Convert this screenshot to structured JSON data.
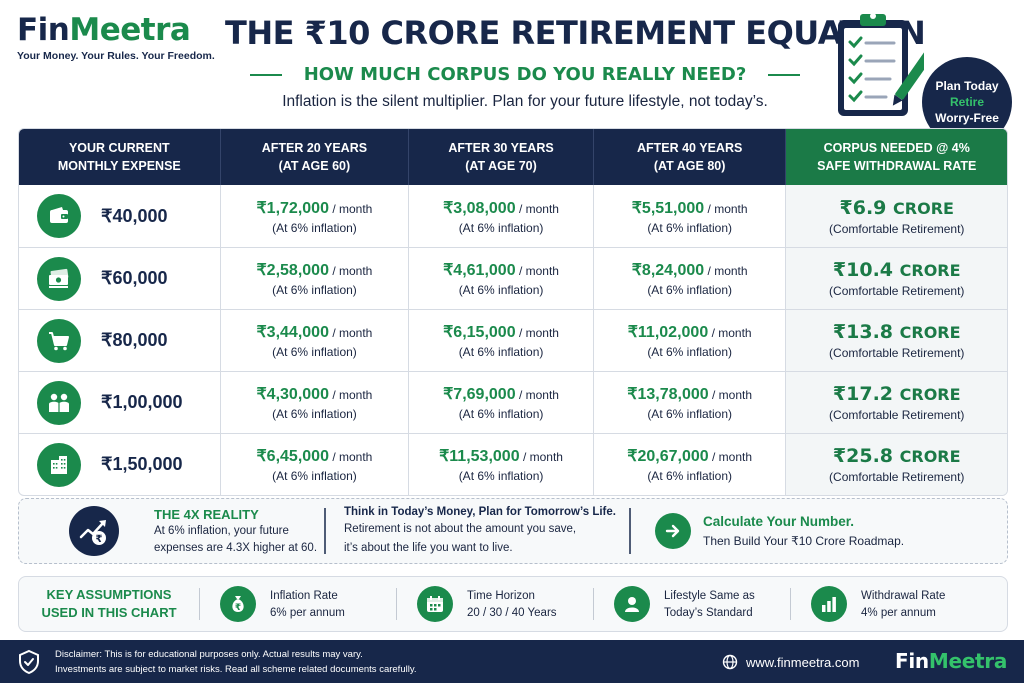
{
  "brand": {
    "name_part1": "Fin",
    "name_part2": "Meetra",
    "tagline": "Your Money. Your Rules. Your Freedom."
  },
  "header": {
    "title": "THE ₹10 CRORE RETIREMENT EQUATION",
    "subtitle": "HOW MUCH CORPUS DO YOU REALLY NEED?",
    "intro": "Inflation is the silent multiplier. Plan for your future lifestyle, not today’s."
  },
  "badge": {
    "line1": "Plan Today",
    "line2": "Retire",
    "line3": "Worry-Free"
  },
  "table": {
    "headers": [
      [
        "YOUR CURRENT",
        "MONTHLY EXPENSE"
      ],
      [
        "AFTER 20 YEARS",
        "(AT AGE 60)"
      ],
      [
        "AFTER 30 YEARS",
        "(AT AGE 70)"
      ],
      [
        "AFTER 40 YEARS",
        "(AT AGE 80)"
      ],
      [
        "CORPUS NEEDED @ 4%",
        "SAFE WITHDRAWAL RATE"
      ]
    ],
    "per_month": "/ month",
    "inflation_note": "(At 6% inflation)",
    "corpus_unit": "CRORE",
    "corpus_note": "(Comfortable Retirement)",
    "rows": [
      {
        "icon": "wallet-icon",
        "expense": "₹40,000",
        "y20": "₹1,72,000",
        "y30": "₹3,08,000",
        "y40": "₹5,51,000",
        "corpus": "₹6.9"
      },
      {
        "icon": "cash-stack-icon",
        "expense": "₹60,000",
        "y20": "₹2,58,000",
        "y30": "₹4,61,000",
        "y40": "₹8,24,000",
        "corpus": "₹10.4"
      },
      {
        "icon": "shopping-cart-icon",
        "expense": "₹80,000",
        "y20": "₹3,44,000",
        "y30": "₹6,15,000",
        "y40": "₹11,02,000",
        "corpus": "₹13.8"
      },
      {
        "icon": "family-icon",
        "expense": "₹1,00,000",
        "y20": "₹4,30,000",
        "y30": "₹7,69,000",
        "y40": "₹13,78,000",
        "corpus": "₹17.2"
      },
      {
        "icon": "buildings-icon",
        "expense": "₹1,50,000",
        "y20": "₹6,45,000",
        "y30": "₹11,53,000",
        "y40": "₹20,67,000",
        "corpus": "₹25.8"
      }
    ]
  },
  "insight": {
    "reality_title": "THE 4X REALITY",
    "reality_line1": "At 6% inflation, your future",
    "reality_line2": "expenses are 4.3X higher at 60.",
    "think_title": "Think in Today’s Money, Plan for Tomorrow’s Life.",
    "think_line1": "Retirement is not about the amount you save,",
    "think_line2": "it’s about the life you want to live.",
    "calc_title": "Calculate Your Number.",
    "calc_text": "Then Build Your ₹10 Crore Roadmap."
  },
  "assumptions": {
    "label_line1": "KEY ASSUMPTIONS",
    "label_line2": "USED IN THIS CHART",
    "items": [
      {
        "icon": "money-bag-icon",
        "title": "Inflation Rate",
        "value": "6% per annum"
      },
      {
        "icon": "calendar-icon",
        "title": "Time Horizon",
        "value": "20 / 30 / 40 Years"
      },
      {
        "icon": "person-icon",
        "title": "Lifestyle Same as",
        "value": "Today’s Standard"
      },
      {
        "icon": "bar-chart-icon",
        "title": "Withdrawal Rate",
        "value": "4% per annum"
      }
    ]
  },
  "footer": {
    "disclaimer_line1": "Disclaimer: This is for educational purposes only. Actual results may vary.",
    "disclaimer_line2": "Investments are subject to market risks. Read all scheme related documents carefully.",
    "website": "www.finmeetra.com",
    "logo_part1": "Fin",
    "logo_part2": "Meetra"
  },
  "colors": {
    "navy": "#17274a",
    "green": "#1b8a4c",
    "light_green": "#34c26b"
  }
}
